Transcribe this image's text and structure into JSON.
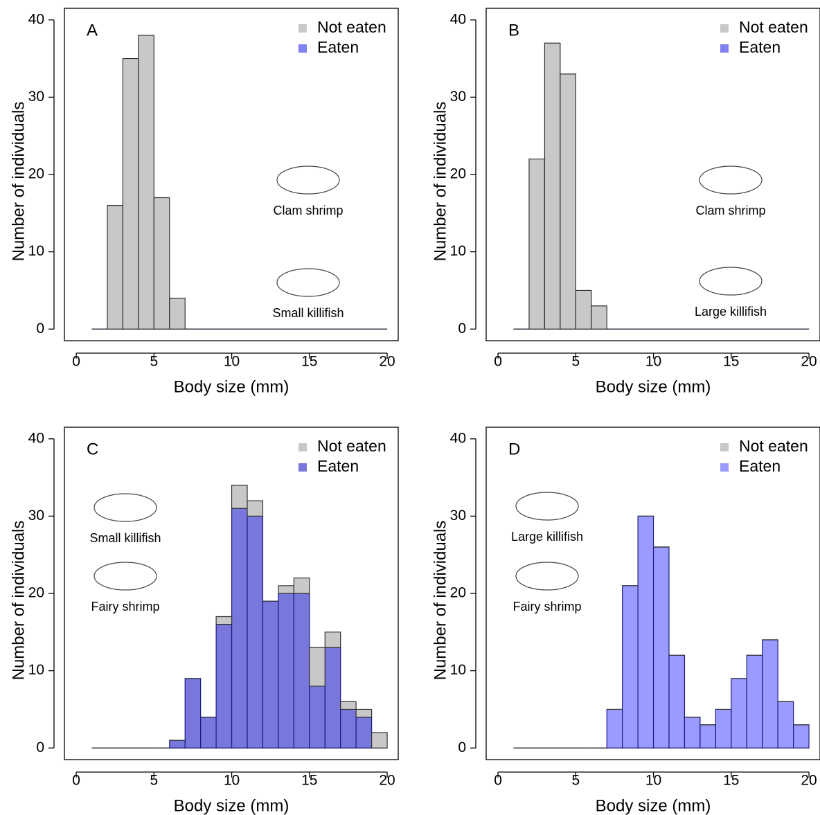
{
  "chart_data": [
    {
      "type": "histogram",
      "panel_label": "A",
      "x_label": "Body size (mm)",
      "y_label": "Number of individuals",
      "annotations": [
        "Clam shrimp",
        "Small killifish"
      ],
      "bins": [
        1,
        2,
        3,
        4,
        5,
        6,
        7,
        8,
        9,
        10,
        11,
        12,
        13,
        14,
        15,
        16,
        17,
        18,
        19,
        20
      ],
      "series": [
        {
          "name": "Not eaten",
          "color": "#c8c8c8",
          "values": [
            0,
            16,
            35,
            38,
            17,
            4,
            0,
            0,
            0,
            0,
            0,
            0,
            0,
            0,
            0,
            0,
            0,
            0,
            0
          ]
        },
        {
          "name": "Eaten",
          "color": "#8080f0",
          "values": [
            0,
            0,
            0,
            0,
            0,
            0,
            0,
            0,
            0,
            0,
            0,
            0,
            0,
            0,
            0,
            0,
            0,
            0,
            0
          ]
        }
      ],
      "xlim": [
        -0.76,
        20.71
      ],
      "ylim": [
        -1.5,
        41.5
      ],
      "xticks": [
        0,
        5,
        10,
        15,
        20
      ],
      "yticks": [
        0,
        10,
        20,
        30,
        40
      ],
      "legend": "top-right"
    },
    {
      "type": "histogram",
      "panel_label": "B",
      "x_label": "Body size (mm)",
      "y_label": "Number of individuals",
      "annotations": [
        "Clam shrimp",
        "Large killifish"
      ],
      "bins": [
        1,
        2,
        3,
        4,
        5,
        6,
        7,
        8,
        9,
        10,
        11,
        12,
        13,
        14,
        15,
        16,
        17,
        18,
        19,
        20
      ],
      "series": [
        {
          "name": "Not eaten",
          "color": "#c8c8c8",
          "values": [
            0,
            22,
            37,
            33,
            5,
            3,
            0,
            0,
            0,
            0,
            0,
            0,
            0,
            0,
            0,
            0,
            0,
            0,
            0
          ]
        },
        {
          "name": "Eaten",
          "color": "#8080f0",
          "values": [
            0,
            0,
            0,
            0,
            0,
            0,
            0,
            0,
            0,
            0,
            0,
            0,
            0,
            0,
            0,
            0,
            0,
            0,
            0
          ]
        }
      ],
      "xlim": [
        -0.76,
        20.71
      ],
      "ylim": [
        -1.5,
        41.5
      ],
      "xticks": [
        0,
        5,
        10,
        15,
        20
      ],
      "yticks": [
        0,
        10,
        20,
        30,
        40
      ],
      "legend": "top-right"
    },
    {
      "type": "histogram",
      "panel_label": "C",
      "x_label": "Body size (mm)",
      "y_label": "Number of individuals",
      "annotations": [
        "Small killifish",
        "Fairy shrimp"
      ],
      "bins": [
        1,
        2,
        3,
        4,
        5,
        6,
        7,
        8,
        9,
        10,
        11,
        12,
        13,
        14,
        15,
        16,
        17,
        18,
        19,
        20
      ],
      "series": [
        {
          "name": "Not eaten",
          "color": "#c8c8c8",
          "values": [
            0,
            0,
            0,
            0,
            0,
            0,
            0,
            0,
            1,
            3,
            2,
            0,
            1,
            2,
            5,
            2,
            1,
            1,
            2
          ]
        },
        {
          "name": "Eaten",
          "color": "#7878dc",
          "values": [
            0,
            0,
            0,
            0,
            0,
            1,
            9,
            4,
            16,
            31,
            30,
            19,
            20,
            20,
            8,
            13,
            5,
            4,
            0
          ]
        }
      ],
      "xlim": [
        -0.76,
        20.71
      ],
      "ylim": [
        -1.5,
        41.5
      ],
      "xticks": [
        0,
        5,
        10,
        15,
        20
      ],
      "yticks": [
        0,
        10,
        20,
        30,
        40
      ],
      "legend": "top-right"
    },
    {
      "type": "histogram",
      "panel_label": "D",
      "x_label": "Body size (mm)",
      "y_label": "Number of individuals",
      "annotations": [
        "Large killifish",
        "Fairy shrimp"
      ],
      "bins": [
        1,
        2,
        3,
        4,
        5,
        6,
        7,
        8,
        9,
        10,
        11,
        12,
        13,
        14,
        15,
        16,
        17,
        18,
        19,
        20
      ],
      "series": [
        {
          "name": "Not eaten",
          "color": "#c8c8c8",
          "values": [
            0,
            0,
            0,
            0,
            0,
            0,
            0,
            0,
            0,
            0,
            0,
            0,
            0,
            0,
            0,
            0,
            0,
            0,
            0
          ]
        },
        {
          "name": "Eaten",
          "color": "#9b9bff",
          "values": [
            0,
            0,
            0,
            0,
            0,
            0,
            5,
            21,
            30,
            26,
            12,
            4,
            3,
            5,
            9,
            12,
            14,
            6,
            3
          ]
        }
      ],
      "xlim": [
        -0.76,
        20.71
      ],
      "ylim": [
        -1.5,
        41.5
      ],
      "xticks": [
        0,
        5,
        10,
        15,
        20
      ],
      "yticks": [
        0,
        10,
        20,
        30,
        40
      ],
      "legend": "top-right"
    }
  ]
}
